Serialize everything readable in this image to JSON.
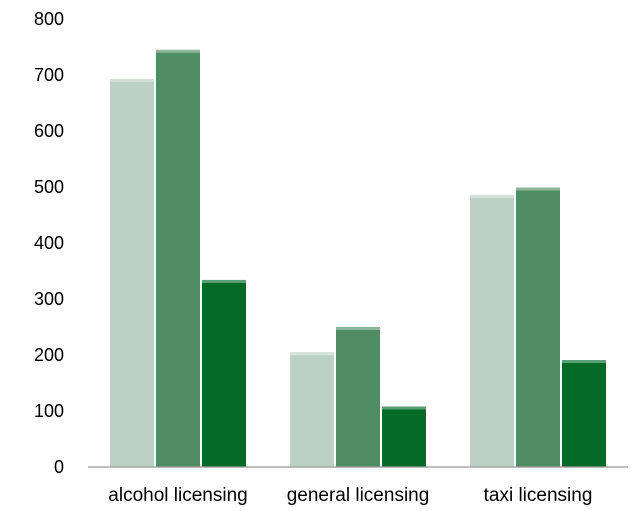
{
  "chart_data": {
    "type": "bar",
    "categories": [
      "alcohol licensing",
      "general licensing",
      "taxi licensing"
    ],
    "series": [
      {
        "color": "#bcd1c5",
        "values": [
          693,
          205,
          486
        ]
      },
      {
        "color": "#4f8e64",
        "values": [
          745,
          250,
          499
        ]
      },
      {
        "color": "#036a28",
        "values": [
          334,
          108,
          191
        ]
      }
    ],
    "title": "",
    "xlabel": "",
    "ylabel": "",
    "ylim": [
      0,
      800
    ],
    "yticks": [
      0,
      100,
      200,
      300,
      400,
      500,
      600,
      700,
      800
    ],
    "grid": false,
    "legend": "none"
  }
}
